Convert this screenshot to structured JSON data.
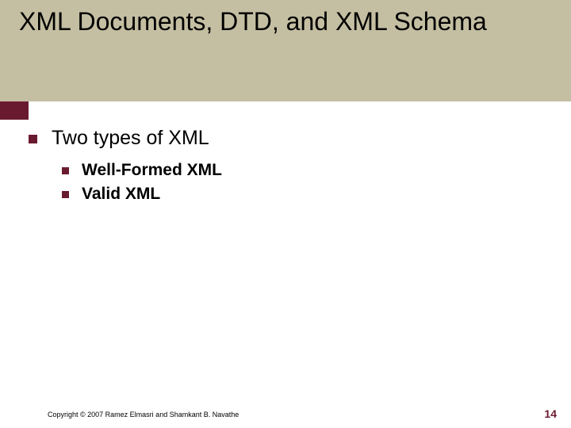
{
  "colors": {
    "title_bg": "#c4bfa2",
    "title_text": "#000000",
    "stripe_left": "#6a1a2f",
    "stripe_right": "#ffffff",
    "bullet": "#6a1a2f",
    "body_text": "#000000",
    "pagenum": "#6a1a2f"
  },
  "title": "XML Documents, DTD, and XML Schema",
  "content": {
    "lvl1_text": "Two types of XML",
    "lvl2_items": [
      "Well-Formed XML",
      "Valid XML"
    ]
  },
  "footer": {
    "copyright": "Copyright © 2007 Ramez Elmasri and Shamkant B. Navathe",
    "page_number": "14"
  }
}
